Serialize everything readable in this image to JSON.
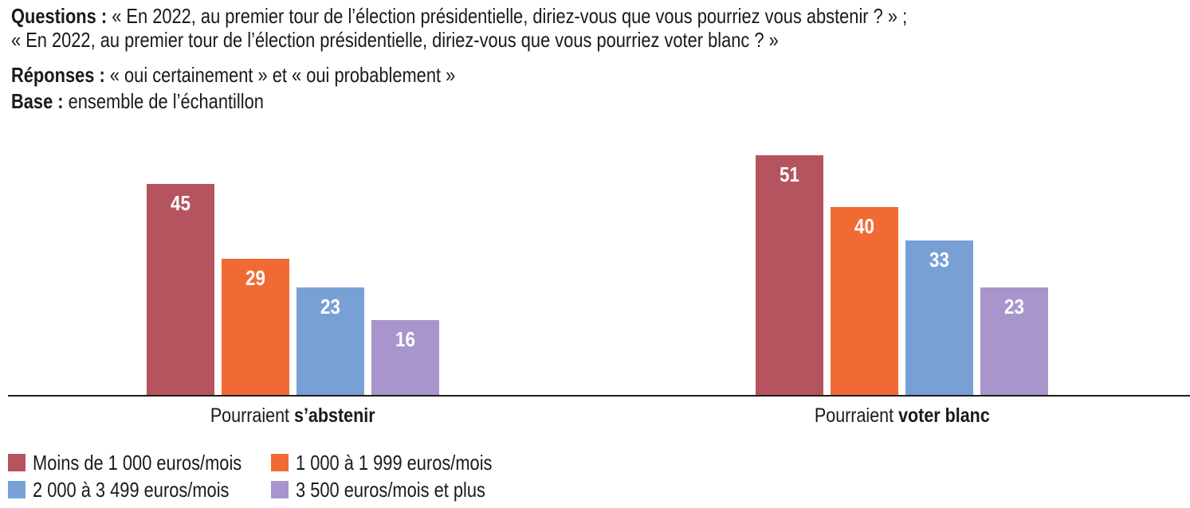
{
  "header": {
    "questions_label": "Questions :",
    "question_line_1": "« En 2022, au premier tour de l’élection présidentielle, diriez-vous que vous pourriez vous abstenir ? » ;",
    "question_line_2": "« En 2022, au premier tour de l’élection présidentielle, diriez-vous que vous pourriez voter blanc ? »",
    "responses_label": "Réponses :",
    "responses_text": "« oui certainement » et « oui probablement »",
    "base_label": "Base :",
    "base_text": "ensemble de l’échantillon"
  },
  "chart_data": {
    "type": "bar",
    "categories": [
      "Pourraient s’abstenir",
      "Pourraient voter blanc"
    ],
    "category_label_parts": [
      {
        "regular": "Pourraient ",
        "bold": "s’abstenir"
      },
      {
        "regular": "Pourraient ",
        "bold": "voter blanc"
      }
    ],
    "series": [
      {
        "name": "Moins de 1 000 euros/mois",
        "color": "#b5545e",
        "values": [
          45,
          51
        ]
      },
      {
        "name": "1 000 à 1 999 euros/mois",
        "color": "#f26a33",
        "values": [
          29,
          40
        ]
      },
      {
        "name": "2 000 à 3 499 euros/mois",
        "color": "#78a0d4",
        "values": [
          23,
          33
        ]
      },
      {
        "name": "3 500 euros/mois et plus",
        "color": "#a795cb",
        "values": [
          16,
          23
        ]
      }
    ],
    "value_labels": "inside-top-white-bold",
    "ylim": [
      0,
      84
    ],
    "axis": {
      "y_axis_visible": false,
      "x_baseline_visible": true,
      "grid": false
    },
    "legend": {
      "position": "bottom-left",
      "columns": 2
    }
  }
}
